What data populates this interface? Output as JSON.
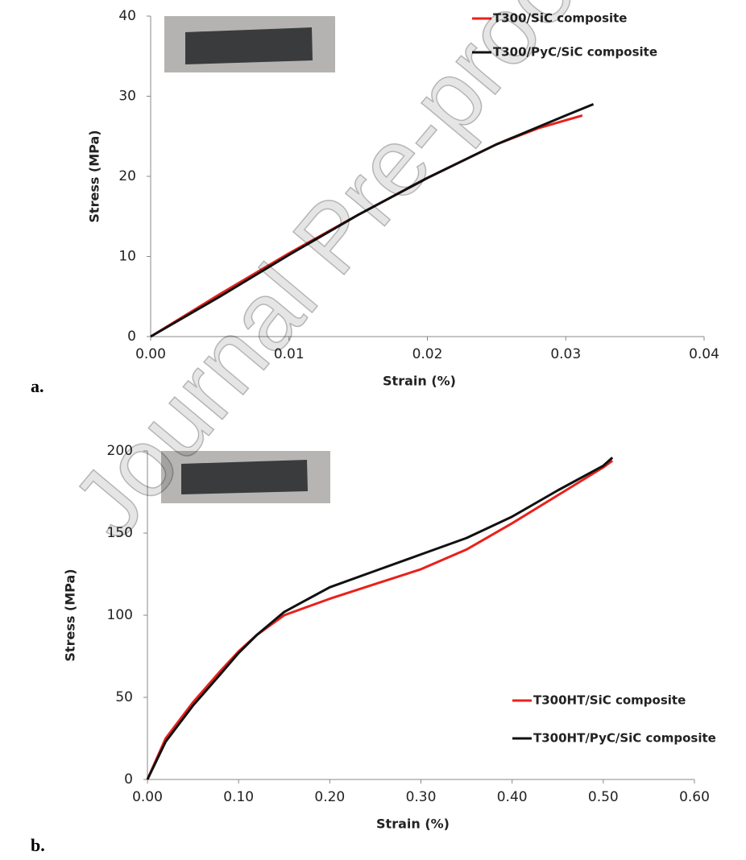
{
  "watermark": "Journal Pre-proof",
  "chart_data": [
    {
      "type": "line",
      "panel_label": "a.",
      "xlabel": "Strain  (%)",
      "ylabel": "Stress (MPa)",
      "xlim": [
        0,
        0.04
      ],
      "ylim": [
        0,
        40
      ],
      "xticks": [
        {
          "value": 0,
          "label": "0.00"
        },
        {
          "value": 0.01,
          "label": "0.01"
        },
        {
          "value": 0.02,
          "label": "0.02"
        },
        {
          "value": 0.03,
          "label": "0.03"
        },
        {
          "value": 0.04,
          "label": "0.04"
        }
      ],
      "yticks": [
        0,
        10,
        20,
        30,
        40
      ],
      "grid": false,
      "legend": "upper right",
      "series": [
        {
          "name": "T300/SiC composite",
          "color": "#e8211c",
          "x": [
            0,
            0.005,
            0.01,
            0.015,
            0.02,
            0.025,
            0.028,
            0.03,
            0.0312
          ],
          "values": [
            0,
            5.3,
            10.4,
            15.2,
            19.8,
            24.0,
            26.0,
            27.0,
            27.6
          ]
        },
        {
          "name": "T300/PyC/SiC composite",
          "color": "#111111",
          "x": [
            0,
            0.005,
            0.01,
            0.015,
            0.02,
            0.025,
            0.03,
            0.032
          ],
          "values": [
            0,
            5.0,
            10.2,
            15.2,
            19.8,
            24.0,
            27.6,
            29.0
          ]
        }
      ]
    },
    {
      "type": "line",
      "panel_label": "b.",
      "xlabel": "Strain (%)",
      "ylabel": "Stress (MPa)",
      "xlim": [
        0,
        0.6
      ],
      "ylim": [
        0,
        200
      ],
      "xticks": [
        {
          "value": 0,
          "label": "0.00"
        },
        {
          "value": 0.1,
          "label": "0.10"
        },
        {
          "value": 0.2,
          "label": "0.20"
        },
        {
          "value": 0.3,
          "label": "0.30"
        },
        {
          "value": 0.4,
          "label": "0.40"
        },
        {
          "value": 0.5,
          "label": "0.50"
        },
        {
          "value": 0.6,
          "label": "0.60"
        }
      ],
      "yticks": [
        0,
        50,
        100,
        150,
        200
      ],
      "grid": false,
      "legend": "lower right",
      "series": [
        {
          "name": "T300HT/SiC  composite",
          "color": "#e8211c",
          "x": [
            0,
            0.02,
            0.05,
            0.08,
            0.1,
            0.12,
            0.15,
            0.2,
            0.25,
            0.3,
            0.35,
            0.4,
            0.45,
            0.5,
            0.51
          ],
          "values": [
            0,
            25,
            47,
            66,
            78,
            88,
            100,
            110,
            119,
            128,
            140,
            156,
            173,
            190,
            194
          ]
        },
        {
          "name": "T300HT/PyC/SiC  composite",
          "color": "#111111",
          "x": [
            0,
            0.02,
            0.05,
            0.08,
            0.1,
            0.12,
            0.15,
            0.2,
            0.25,
            0.3,
            0.35,
            0.4,
            0.45,
            0.5,
            0.51
          ],
          "values": [
            0,
            23,
            45,
            64,
            77,
            88,
            102,
            117,
            127,
            137,
            147,
            160,
            176,
            191,
            196
          ]
        }
      ]
    }
  ]
}
